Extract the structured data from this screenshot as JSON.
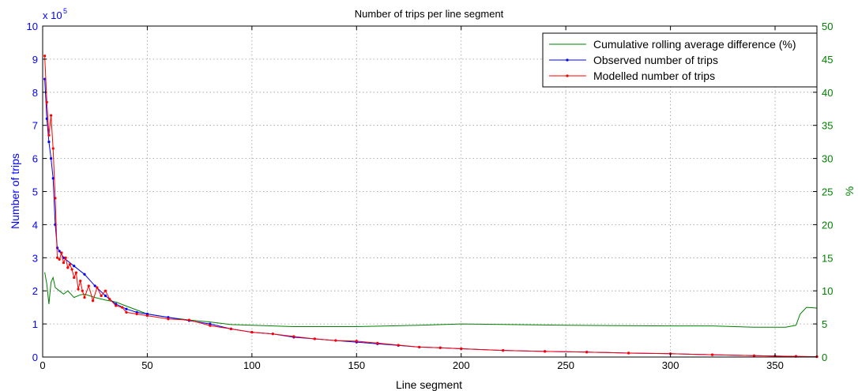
{
  "chart_data": {
    "type": "line",
    "title": "Number of trips per line segment",
    "xlabel": "Line segment",
    "ylabel_left": "Number of trips",
    "ylabel_right": "%",
    "y_multiplier_label": "x 10",
    "y_multiplier_exp": "5",
    "xlim": [
      0,
      370
    ],
    "ylim_left": [
      0,
      10
    ],
    "ylim_right": [
      0,
      50
    ],
    "x_ticks": [
      "0",
      "50",
      "100",
      "150",
      "200",
      "250",
      "300",
      "350"
    ],
    "y_left_ticks": [
      "0",
      "1",
      "2",
      "3",
      "4",
      "5",
      "6",
      "7",
      "8",
      "9",
      "10"
    ],
    "y_right_ticks": [
      "0",
      "5",
      "10",
      "15",
      "20",
      "25",
      "30",
      "35",
      "40",
      "45",
      "50"
    ],
    "grid": true,
    "legend_position": "top-right",
    "colors": {
      "left_axis": "#0000ff",
      "right_axis": "#008000",
      "observed": "#0000ff",
      "modelled": "#ff0000",
      "cumulative": "#008000"
    },
    "series": [
      {
        "name": "Cumulative rolling average difference (%)",
        "axis": "right",
        "x": [
          1,
          2,
          3,
          4,
          5,
          6,
          8,
          10,
          12,
          15,
          18,
          20,
          25,
          30,
          35,
          40,
          50,
          60,
          70,
          80,
          90,
          100,
          110,
          120,
          150,
          180,
          200,
          250,
          300,
          320,
          340,
          355,
          360,
          362,
          365,
          370
        ],
        "y": [
          12.8,
          11,
          8,
          11.3,
          12,
          10.5,
          10,
          9.5,
          10,
          9,
          9.4,
          9.5,
          9,
          8.6,
          8.3,
          7.7,
          6.5,
          6,
          5.6,
          5.3,
          4.9,
          4.8,
          4.7,
          4.6,
          4.6,
          4.8,
          5,
          4.8,
          4.7,
          4.7,
          4.5,
          4.5,
          4.8,
          6.5,
          7.5,
          7.4
        ]
      },
      {
        "name": "Observed number of trips",
        "axis": "left",
        "x": [
          1,
          2,
          3,
          4,
          5,
          6,
          7,
          8,
          10,
          15,
          20,
          25,
          30,
          35,
          40,
          45,
          50,
          60,
          70,
          80,
          90,
          100,
          110,
          120,
          130,
          140,
          150,
          160,
          170,
          180,
          190,
          200,
          220,
          240,
          260,
          280,
          300,
          320,
          340,
          350,
          360,
          370
        ],
        "y": [
          8.4,
          7.2,
          6.5,
          6.0,
          5.4,
          4.0,
          3.3,
          3.2,
          3.0,
          2.75,
          2.5,
          2.15,
          1.85,
          1.6,
          1.45,
          1.35,
          1.3,
          1.2,
          1.1,
          1.0,
          0.85,
          0.75,
          0.7,
          0.6,
          0.55,
          0.5,
          0.45,
          0.4,
          0.35,
          0.3,
          0.28,
          0.25,
          0.2,
          0.17,
          0.15,
          0.12,
          0.1,
          0.07,
          0.04,
          0.03,
          0.02,
          0.01
        ]
      },
      {
        "name": "Modelled number of trips",
        "axis": "left",
        "x": [
          1,
          2,
          3,
          4,
          5,
          6,
          7,
          8,
          9,
          10,
          11,
          12,
          13,
          14,
          15,
          16,
          17,
          18,
          19,
          20,
          22,
          24,
          26,
          28,
          30,
          32,
          35,
          38,
          40,
          45,
          50,
          60,
          70,
          80,
          90,
          100,
          110,
          120,
          130,
          140,
          150,
          160,
          170,
          180,
          190,
          200,
          220,
          240,
          260,
          280,
          300,
          320,
          340,
          350,
          360,
          370
        ],
        "y": [
          9.1,
          7.7,
          6.7,
          7.3,
          6.3,
          4.8,
          3.0,
          2.95,
          3.15,
          2.85,
          3.0,
          2.7,
          2.8,
          2.65,
          2.4,
          2.55,
          2.05,
          2.3,
          2.0,
          1.8,
          2.15,
          1.7,
          2.1,
          1.85,
          2.0,
          1.75,
          1.55,
          1.5,
          1.35,
          1.3,
          1.25,
          1.15,
          1.12,
          0.95,
          0.85,
          0.75,
          0.7,
          0.62,
          0.55,
          0.5,
          0.48,
          0.42,
          0.36,
          0.3,
          0.28,
          0.25,
          0.2,
          0.17,
          0.15,
          0.12,
          0.1,
          0.07,
          0.04,
          0.03,
          0.02,
          0.01
        ]
      }
    ]
  }
}
